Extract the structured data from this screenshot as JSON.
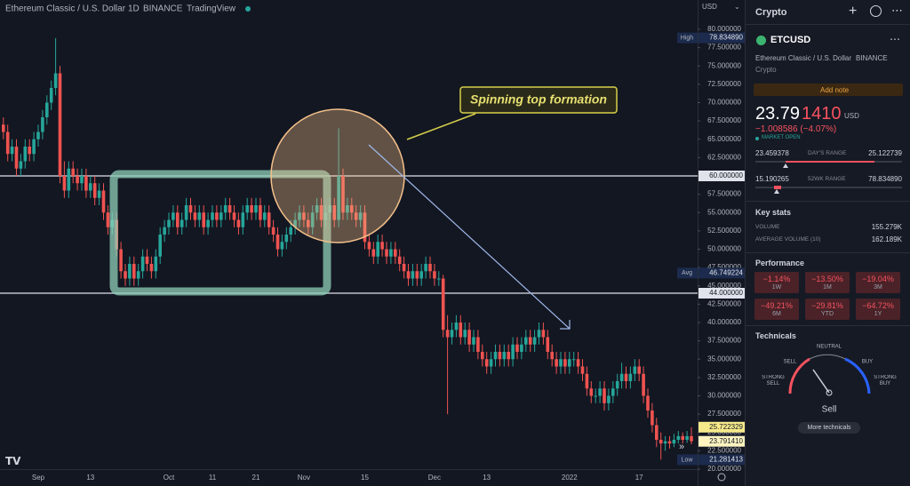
{
  "chart_data": {
    "type": "candlestick",
    "title": "Ethereum Classic / U.S. Dollar",
    "interval": "1D",
    "exchange": "BINANCE",
    "source": "TradingView",
    "currency": "USD",
    "annotation": "Spinning top formation",
    "colors": {
      "up": "#26a69a",
      "down": "#ef5350"
    },
    "ylim": [
      20,
      84
    ],
    "yticks": [
      {
        "value": 80,
        "label": "80.000000"
      },
      {
        "value": 77.5,
        "label": "77.500000"
      },
      {
        "value": 75,
        "label": "75.000000"
      },
      {
        "value": 72.5,
        "label": "72.500000"
      },
      {
        "value": 70,
        "label": "70.000000"
      },
      {
        "value": 67.5,
        "label": "67.500000"
      },
      {
        "value": 65,
        "label": "65.000000"
      },
      {
        "value": 62.5,
        "label": "62.500000"
      },
      {
        "value": 60,
        "label": "60.000000"
      },
      {
        "value": 57.5,
        "label": "57.500000"
      },
      {
        "value": 55,
        "label": "55.000000"
      },
      {
        "value": 52.5,
        "label": "52.500000"
      },
      {
        "value": 50,
        "label": "50.000000"
      },
      {
        "value": 47.5,
        "label": "47.500000"
      },
      {
        "value": 45,
        "label": "45.000000"
      },
      {
        "value": 42.5,
        "label": "42.500000"
      },
      {
        "value": 40,
        "label": "40.000000"
      },
      {
        "value": 37.5,
        "label": "37.500000"
      },
      {
        "value": 35,
        "label": "35.000000"
      },
      {
        "value": 32.5,
        "label": "32.500000"
      },
      {
        "value": 30,
        "label": "30.000000"
      },
      {
        "value": 27.5,
        "label": "27.500000"
      },
      {
        "value": 25,
        "label": "25.000000"
      },
      {
        "value": 22.5,
        "label": "22.500000"
      },
      {
        "value": 20,
        "label": "20.000000"
      }
    ],
    "hlines": [
      {
        "value": 60,
        "label": "60.000000"
      },
      {
        "value": 44,
        "label": "44.000000"
      }
    ],
    "price_tags": [
      {
        "name": "High",
        "value": 78.83489,
        "label": "78.834890",
        "color": "#1c2b4d"
      },
      {
        "name": "Avg",
        "value": 46.749224,
        "label": "46.749224",
        "color": "#1c2b4d"
      },
      {
        "value": 25.722329,
        "label": "25.722329",
        "color": "#f7ea8a"
      },
      {
        "value": 23.79141,
        "label": "23.791410",
        "color": "#fdf4c0"
      },
      {
        "name": "Low",
        "value": 21.281413,
        "label": "21.281413",
        "color": "#1c2b4d"
      }
    ],
    "categories": [
      null,
      null,
      null,
      null,
      null,
      null,
      null,
      null,
      "Sep",
      null,
      null,
      null,
      null,
      null,
      null,
      null,
      null,
      null,
      null,
      null,
      "13",
      null,
      null,
      null,
      null,
      null,
      null,
      null,
      null,
      null,
      null,
      null,
      null,
      null,
      null,
      null,
      null,
      null,
      "Oct",
      null,
      null,
      null,
      null,
      null,
      null,
      null,
      null,
      null,
      "11",
      null,
      null,
      null,
      null,
      null,
      null,
      null,
      null,
      null,
      "21",
      null,
      null,
      null,
      null,
      null,
      null,
      null,
      null,
      null,
      null,
      "Nov",
      null,
      null,
      null,
      null,
      null,
      null,
      null,
      null,
      null,
      null,
      null,
      null,
      null,
      "15",
      null,
      null,
      null,
      null,
      null,
      null,
      null,
      null,
      null,
      null,
      null,
      null,
      null,
      null,
      null,
      "Dec",
      null,
      null,
      null,
      null,
      null,
      null,
      null,
      null,
      null,
      null,
      null,
      "13",
      null,
      null,
      null,
      null,
      null,
      null,
      null,
      null,
      null,
      null,
      null,
      null,
      null,
      null,
      null,
      null,
      null,
      null,
      "2022",
      null,
      null,
      null,
      null,
      null,
      null,
      null,
      null,
      null,
      null,
      null,
      null,
      null,
      null,
      null,
      "17",
      null,
      null,
      null,
      null,
      null,
      null,
      null,
      null,
      null,
      null,
      null,
      null
    ],
    "candles": [
      [
        67,
        68,
        65,
        66
      ],
      [
        66,
        67,
        62,
        63
      ],
      [
        63,
        65,
        62,
        64
      ],
      [
        64,
        65,
        60,
        61
      ],
      [
        61,
        63,
        60,
        62
      ],
      [
        62,
        65,
        61,
        64
      ],
      [
        64,
        65,
        62,
        63
      ],
      [
        63,
        66,
        62,
        65
      ],
      [
        65,
        67,
        64,
        66
      ],
      [
        66,
        69,
        65,
        68
      ],
      [
        68,
        71,
        67,
        70
      ],
      [
        70,
        73,
        69,
        72
      ],
      [
        72,
        78.8,
        71,
        74
      ],
      [
        74,
        75,
        59,
        60
      ],
      [
        60,
        62,
        57,
        58
      ],
      [
        58,
        62,
        57,
        61
      ],
      [
        61,
        62,
        59,
        60
      ],
      [
        60,
        61,
        58,
        59
      ],
      [
        59,
        61,
        58,
        60
      ],
      [
        60,
        61,
        57,
        58
      ],
      [
        58,
        60,
        57,
        59
      ],
      [
        59,
        60,
        56,
        57
      ],
      [
        57,
        59,
        56,
        58
      ],
      [
        58,
        59,
        54,
        55
      ],
      [
        55,
        56,
        52,
        53
      ],
      [
        53,
        55,
        52,
        54
      ],
      [
        54,
        55,
        49,
        50
      ],
      [
        50,
        51,
        46,
        47
      ],
      [
        47,
        48,
        45,
        46
      ],
      [
        46,
        49,
        45,
        48
      ],
      [
        48,
        49,
        45,
        46
      ],
      [
        46,
        48,
        45,
        47
      ],
      [
        47,
        50,
        46,
        49
      ],
      [
        49,
        50,
        47,
        48
      ],
      [
        48,
        49,
        46,
        47
      ],
      [
        47,
        50,
        46,
        49
      ],
      [
        49,
        53,
        48,
        52
      ],
      [
        52,
        54,
        51,
        53
      ],
      [
        53,
        55,
        52,
        54
      ],
      [
        54,
        56,
        53,
        55
      ],
      [
        55,
        56,
        52,
        53
      ],
      [
        53,
        55,
        52,
        54
      ],
      [
        54,
        57,
        53,
        56
      ],
      [
        56,
        57,
        54,
        55
      ],
      [
        55,
        56,
        53,
        54
      ],
      [
        54,
        56,
        53,
        55
      ],
      [
        55,
        56,
        52,
        53
      ],
      [
        53,
        55,
        52,
        54
      ],
      [
        54,
        56,
        53,
        55
      ],
      [
        55,
        56,
        53,
        54
      ],
      [
        54,
        56,
        53,
        55
      ],
      [
        55,
        57,
        54,
        56
      ],
      [
        56,
        57,
        54,
        55
      ],
      [
        55,
        56,
        53,
        54
      ],
      [
        54,
        55,
        52,
        53
      ],
      [
        53,
        56,
        52,
        55
      ],
      [
        55,
        57,
        54,
        56
      ],
      [
        56,
        57,
        54,
        55
      ],
      [
        55,
        57,
        54,
        56
      ],
      [
        56,
        57,
        53,
        54
      ],
      [
        54,
        56,
        53,
        55
      ],
      [
        55,
        56,
        52,
        53
      ],
      [
        53,
        54,
        51,
        52
      ],
      [
        52,
        53,
        49,
        50
      ],
      [
        50,
        52,
        49,
        51
      ],
      [
        51,
        53,
        50,
        52
      ],
      [
        52,
        54,
        51,
        53
      ],
      [
        53,
        55,
        52,
        54
      ],
      [
        54,
        56,
        53,
        55
      ],
      [
        55,
        56,
        53,
        54
      ],
      [
        54,
        55,
        52,
        53
      ],
      [
        53,
        56,
        52,
        55
      ],
      [
        55,
        57,
        54,
        56
      ],
      [
        56,
        57,
        53,
        54
      ],
      [
        54,
        56,
        53,
        55
      ],
      [
        55,
        57,
        54,
        56
      ],
      [
        56,
        57,
        53,
        54
      ],
      [
        54,
        66.5,
        53,
        60
      ],
      [
        60,
        61,
        54,
        55
      ],
      [
        55,
        57,
        54,
        56
      ],
      [
        56,
        57,
        54,
        55
      ],
      [
        55,
        56,
        53,
        54
      ],
      [
        54,
        56,
        53,
        55
      ],
      [
        55,
        56,
        50,
        51
      ],
      [
        51,
        52,
        49,
        50
      ],
      [
        50,
        51,
        48,
        49
      ],
      [
        49,
        52,
        48,
        51
      ],
      [
        51,
        52,
        49,
        50
      ],
      [
        50,
        51,
        48,
        49
      ],
      [
        49,
        51,
        48,
        50
      ],
      [
        50,
        51,
        48,
        49
      ],
      [
        49,
        50,
        47,
        48
      ],
      [
        48,
        49,
        46,
        47
      ],
      [
        47,
        48,
        45,
        46
      ],
      [
        46,
        48,
        45,
        47
      ],
      [
        47,
        48,
        45,
        46
      ],
      [
        46,
        48,
        45,
        47
      ],
      [
        47,
        49,
        46,
        48
      ],
      [
        48,
        49,
        46,
        47
      ],
      [
        47,
        48,
        45,
        46
      ],
      [
        46,
        47,
        45,
        46
      ],
      [
        46,
        46.5,
        38,
        39
      ],
      [
        39,
        41,
        27.5,
        38
      ],
      [
        38,
        40,
        37,
        39
      ],
      [
        39,
        41,
        38,
        40
      ],
      [
        40,
        41,
        37,
        38
      ],
      [
        38,
        40,
        37,
        39
      ],
      [
        39,
        40,
        36,
        37
      ],
      [
        37,
        39,
        36,
        38
      ],
      [
        38,
        39,
        35,
        36
      ],
      [
        36,
        37,
        34,
        35
      ],
      [
        35,
        36,
        33,
        34
      ],
      [
        34,
        36,
        33,
        35
      ],
      [
        35,
        37,
        34,
        36
      ],
      [
        36,
        37,
        34,
        35
      ],
      [
        35,
        37,
        34,
        36
      ],
      [
        36,
        37,
        34,
        35
      ],
      [
        35,
        38,
        34,
        37
      ],
      [
        37,
        38,
        35,
        36
      ],
      [
        36,
        38,
        35,
        37
      ],
      [
        37,
        39,
        36,
        38
      ],
      [
        38,
        39,
        36,
        37
      ],
      [
        37,
        39,
        36,
        38
      ],
      [
        38,
        40,
        37,
        39
      ],
      [
        39,
        40,
        37,
        38
      ],
      [
        38,
        39,
        35,
        36
      ],
      [
        36,
        37,
        34,
        35
      ],
      [
        35,
        36,
        33,
        34
      ],
      [
        34,
        36,
        33,
        35
      ],
      [
        35,
        36,
        33,
        34
      ],
      [
        34,
        36,
        33,
        35
      ],
      [
        35,
        36,
        34,
        35
      ],
      [
        35,
        36,
        33,
        34
      ],
      [
        34,
        35,
        32,
        33
      ],
      [
        33,
        34,
        30,
        31
      ],
      [
        31,
        32,
        29,
        30
      ],
      [
        30,
        31,
        29,
        30
      ],
      [
        30,
        32,
        29,
        31
      ],
      [
        31,
        32,
        28,
        29
      ],
      [
        29,
        31,
        28,
        30
      ],
      [
        30,
        32,
        29,
        31
      ],
      [
        31,
        33,
        30,
        32
      ],
      [
        32,
        34.5,
        31,
        33
      ],
      [
        33,
        34,
        31,
        32
      ],
      [
        32,
        34,
        31,
        33
      ],
      [
        33,
        35,
        32,
        34
      ],
      [
        34,
        35,
        32,
        33
      ],
      [
        33,
        34,
        29,
        30
      ],
      [
        30,
        31,
        27,
        28
      ],
      [
        28,
        29,
        25,
        26
      ],
      [
        26,
        27,
        23,
        24
      ],
      [
        24,
        25,
        21.3,
        23.5
      ],
      [
        23.5,
        24.5,
        22.5,
        23.8
      ],
      [
        23.8,
        24.5,
        22.8,
        23.5
      ],
      [
        23.5,
        24.8,
        23,
        24
      ],
      [
        24,
        25.2,
        23.5,
        24.5
      ],
      [
        24.5,
        25,
        23.5,
        24
      ],
      [
        24,
        25.2,
        23.6,
        24.5
      ],
      [
        24.5,
        25.7,
        23.4,
        23.8
      ]
    ]
  },
  "sidebar": {
    "watchlist": "Crypto",
    "symbol": "ETCUSD",
    "description": "Ethereum Classic / U.S. Dollar",
    "exchange": "BINANCE",
    "category": "Crypto",
    "add_note": "Add note",
    "price_main": "23.79",
    "price_decimals": "1410",
    "currency": "USD",
    "change": "−1.008586 (−4.07%)",
    "status": "MARKET OPEN",
    "day_range": {
      "low": "23.459378",
      "label": "DAY'S RANGE",
      "high": "25.122739"
    },
    "week52_range": {
      "low": "15.190265",
      "label": "52WK RANGE",
      "high": "78.834890"
    },
    "key_stats": {
      "title": "Key stats",
      "rows": [
        [
          "VOLUME",
          "155.279K"
        ],
        [
          "AVERAGE VOLUME (10)",
          "162.189K"
        ]
      ]
    },
    "performance": {
      "title": "Performance",
      "cells": [
        [
          "−1.14%",
          "1W"
        ],
        [
          "−13.50%",
          "1M"
        ],
        [
          "−19.04%",
          "3M"
        ],
        [
          "−49.21%",
          "6M"
        ],
        [
          "−29.81%",
          "YTD"
        ],
        [
          "−64.72%",
          "1Y"
        ]
      ]
    },
    "technicals": {
      "title": "Technicals",
      "sell": "SELL",
      "neutral": "NEUTRAL",
      "buy": "BUY",
      "strong_sell": "STRONG SELL",
      "strong_buy": "STRONG BUY",
      "verdict": "Sell",
      "button": "More technicals"
    }
  }
}
